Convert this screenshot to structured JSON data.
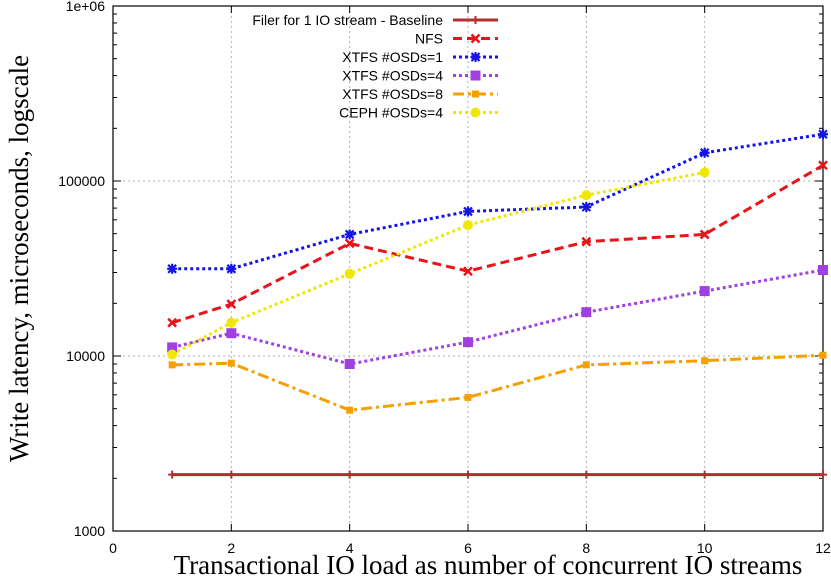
{
  "chart_data": {
    "type": "line",
    "xlabel": "Transactional IO load as number of concurrent IO streams",
    "ylabel": "Write latency, microseconds, logscale",
    "xlim": [
      0,
      12
    ],
    "ylim": [
      1000,
      1000000
    ],
    "yscale": "log",
    "grid": true,
    "legend_position": "top-left",
    "x_ticks": [
      0,
      2,
      4,
      6,
      8,
      10,
      12
    ],
    "x_tick_labels": [
      "0",
      "2",
      "4",
      "6",
      "8",
      "10",
      "12"
    ],
    "y_ticks": [
      1000,
      10000,
      100000,
      1000000
    ],
    "y_tick_labels": [
      "1000",
      "10000",
      "100000",
      "1e+06"
    ],
    "series": [
      {
        "name": "Filer for 1 IO stream - Baseline",
        "color": "#b03030",
        "marker": "plus",
        "dash": "solid",
        "x": [
          1,
          2,
          4,
          6,
          8,
          10,
          12
        ],
        "values": [
          2100,
          2100,
          2100,
          2100,
          2100,
          2100,
          2100
        ]
      },
      {
        "name": "NFS",
        "color": "#e8141a",
        "marker": "x",
        "dash": "dashed",
        "x": [
          1,
          2,
          4,
          6,
          8,
          10,
          12
        ],
        "values": [
          15500,
          19800,
          44000,
          30500,
          45000,
          49500,
          123000
        ]
      },
      {
        "name": "XTFS #OSDs=1",
        "color": "#1414e8",
        "marker": "star",
        "dash": "dotted",
        "x": [
          1,
          2,
          4,
          6,
          8,
          10,
          12
        ],
        "values": [
          31500,
          31500,
          49500,
          67000,
          71000,
          145000,
          185000
        ]
      },
      {
        "name": "XTFS #OSDs=4",
        "color": "#a040e0",
        "marker": "square",
        "dash": "dotted",
        "x": [
          1,
          2,
          4,
          6,
          8,
          10,
          12
        ],
        "values": [
          11200,
          13500,
          9000,
          12000,
          17800,
          23500,
          31000
        ]
      },
      {
        "name": "XTFS #OSDs=8",
        "color": "#f5a000",
        "marker": "small-square",
        "dash": "dashdot",
        "x": [
          1,
          2,
          4,
          6,
          8,
          10,
          12
        ],
        "values": [
          8900,
          9100,
          4900,
          5800,
          8900,
          9400,
          10100
        ]
      },
      {
        "name": "CEPH #OSDs=4",
        "color": "#f0e800",
        "marker": "circle",
        "dash": "dotted",
        "x": [
          1,
          2,
          4,
          6,
          8,
          10
        ],
        "values": [
          10200,
          15500,
          29500,
          56000,
          83000,
          112000
        ]
      }
    ]
  }
}
